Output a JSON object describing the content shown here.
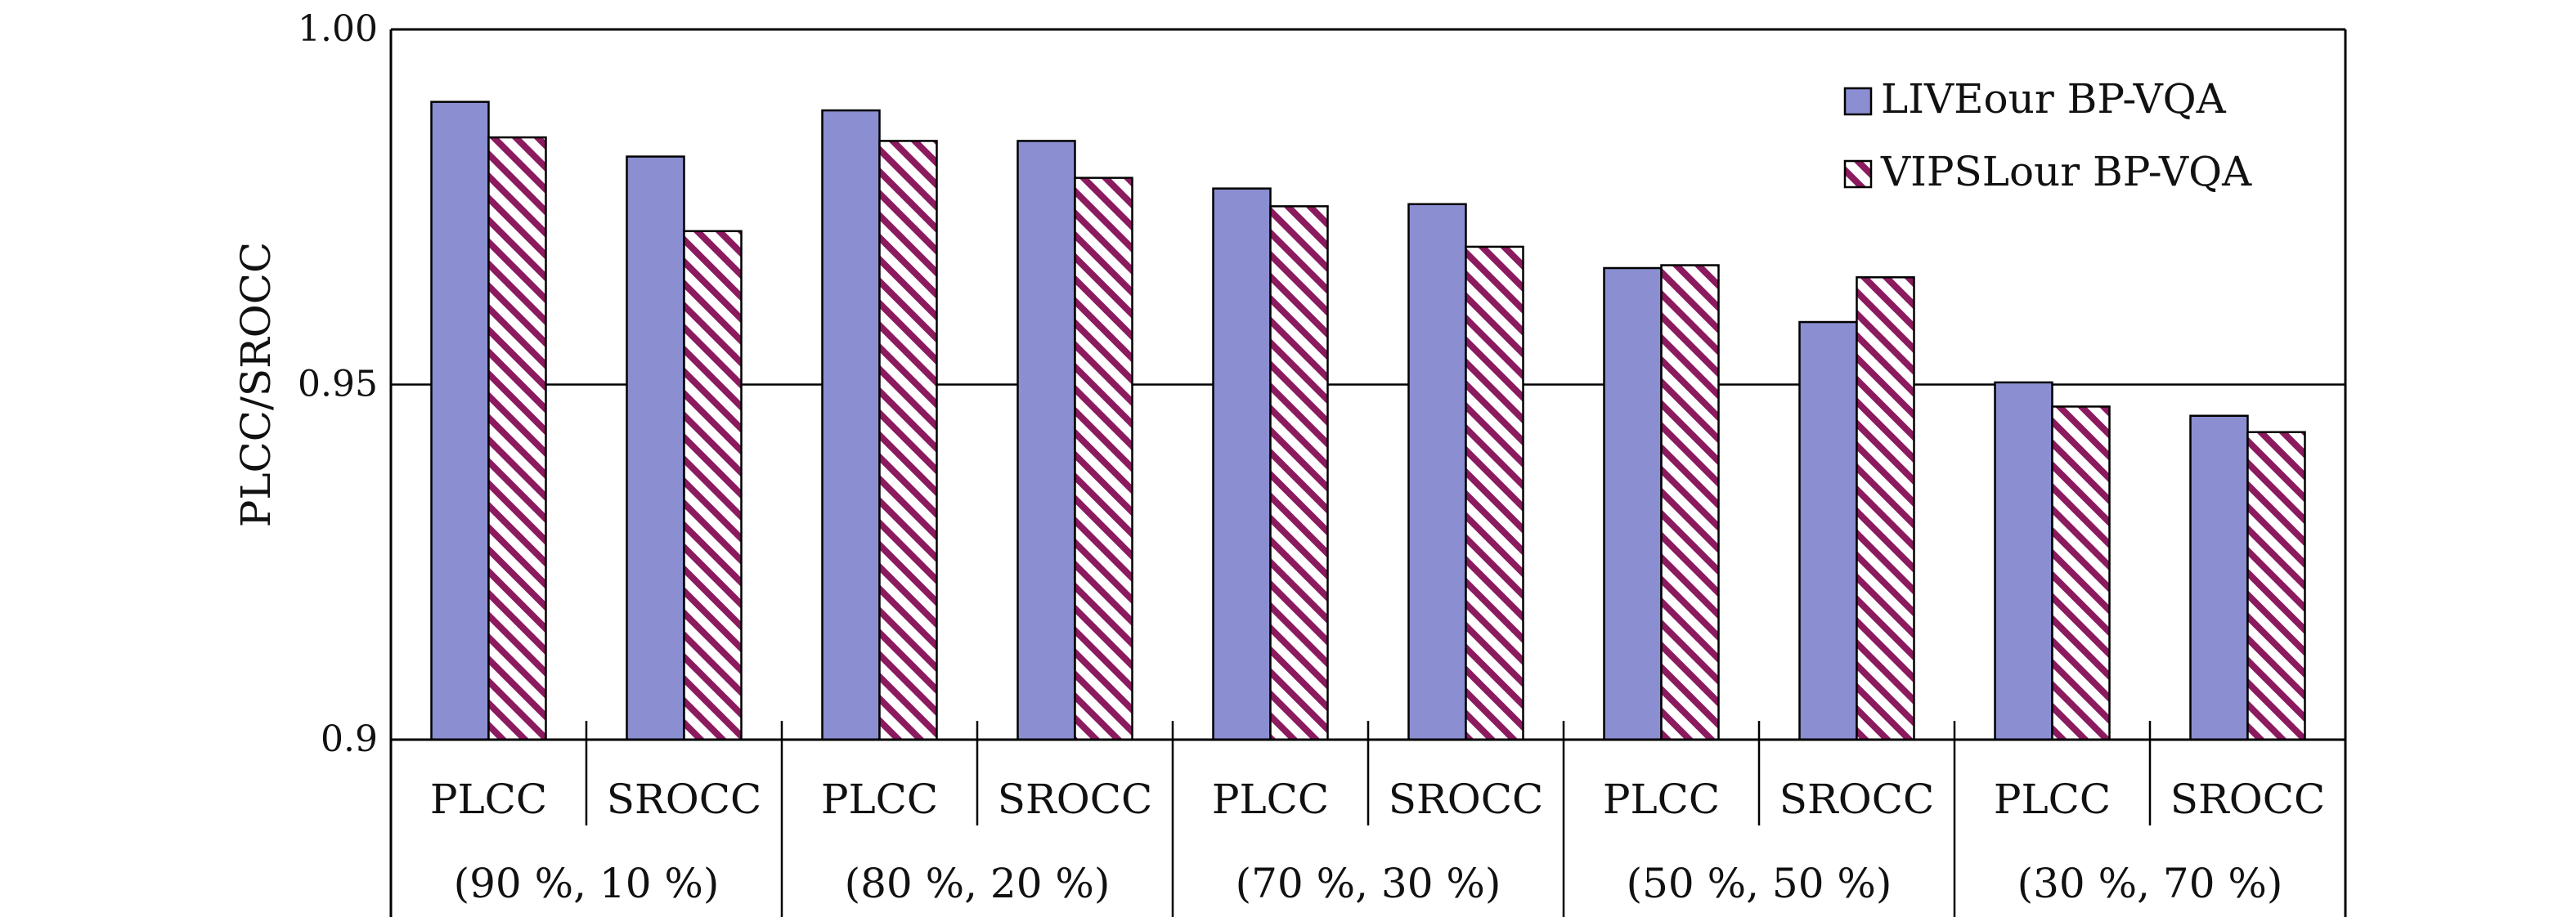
{
  "chart_data": {
    "type": "bar",
    "ylabel": "PLCC/SROCC",
    "ylim": [
      0.9,
      1.0
    ],
    "yticks": [
      {
        "value": 0.9,
        "label": "0.9"
      },
      {
        "value": 0.95,
        "label": "0.95"
      },
      {
        "value": 1.0,
        "label": "1.00"
      }
    ],
    "grid": "horizontal lines at major y ticks",
    "legend_position": "top-right",
    "categories": [
      "PLCC",
      "SROCC",
      "PLCC",
      "SROCC",
      "PLCC",
      "SROCC",
      "PLCC",
      "SROCC",
      "PLCC",
      "SROCC"
    ],
    "groups": [
      "(90 %, 10 %)",
      "(80 %, 20 %)",
      "(70 %, 30 %)",
      "(50 %, 50 %)",
      "(30 %, 70 %)"
    ],
    "series": [
      {
        "name": "LIVEour BP-VQA",
        "color": "#8b8ed0",
        "style": "solid",
        "values": [
          0.9898,
          0.9821,
          0.9886,
          0.9843,
          0.9776,
          0.9754,
          0.9664,
          0.9588,
          0.9503,
          0.9456
        ]
      },
      {
        "name": "VIPSLour BP-VQA",
        "color": "#8b1a5e",
        "style": "hatched",
        "values": [
          0.9848,
          0.9716,
          0.9843,
          0.9791,
          0.9751,
          0.9694,
          0.9668,
          0.9651,
          0.9469,
          0.9433
        ]
      }
    ]
  }
}
